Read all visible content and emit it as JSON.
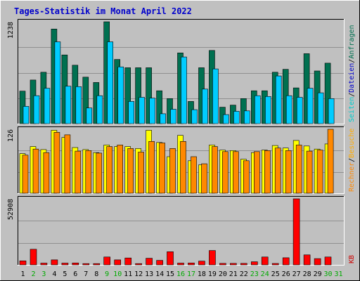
{
  "title": "Tages-Statistik im Monat April 2022",
  "colors": {
    "background": "#c0c0c0",
    "panel": "#c0c0c0",
    "grid": "#909090",
    "title": "#0000cc",
    "hits": "#007050",
    "hits_light": "#00a080",
    "files": "#00ccff",
    "files_dark": "#0077aa",
    "pages": "#00cccc",
    "visits": "#ffff00",
    "visits_dark": "#aaaa00",
    "sites": "#ff8800",
    "sites_dark": "#aa4400",
    "kbytes": "#ff0000",
    "kbytes_dark": "#880000",
    "weekend_day": "#00aa00",
    "weekday": "#000000"
  },
  "chart_data": {
    "type": "bar",
    "title": "Tages-Statistik im Monat April 2022",
    "x": [
      1,
      2,
      3,
      4,
      5,
      6,
      7,
      8,
      9,
      10,
      11,
      12,
      13,
      14,
      15,
      16,
      17,
      18,
      19,
      20,
      21,
      22,
      23,
      24,
      25,
      26,
      27,
      28,
      29,
      30,
      31
    ],
    "weekend_days": [
      2,
      3,
      9,
      10,
      16,
      17,
      23,
      24,
      30,
      31
    ],
    "panels": [
      {
        "name": "top",
        "ymax": 1238,
        "ytick_label": "1238",
        "right_labels": [
          {
            "text": "Anfragen",
            "color": "#007050"
          },
          {
            "text": "/",
            "color": "#000000"
          },
          {
            "text": "Dateien",
            "color": "#0000cc"
          },
          {
            "text": "/",
            "color": "#000000"
          },
          {
            "text": "Seiten",
            "color": "#00cccc"
          }
        ],
        "series": [
          {
            "name": "Anfragen",
            "values": [
              395,
              530,
              625,
              1150,
              835,
              710,
              565,
              500,
              1238,
              780,
              680,
              680,
              680,
              400,
              305,
              860,
              270,
              680,
              890,
              200,
              225,
              305,
              400,
              400,
              625,
              660,
              435,
              850,
              640,
              735,
              0
            ]
          },
          {
            "name": "Dateien",
            "values": [
              210,
              340,
              430,
              995,
              455,
              450,
              190,
              340,
              995,
              690,
              270,
              320,
              310,
              120,
              175,
              810,
              170,
              420,
              665,
              110,
              150,
              155,
              340,
              330,
              580,
              340,
              320,
              430,
              375,
              305,
              0
            ]
          },
          {
            "name": "Seiten",
            "values": [
              0,
              0,
              0,
              0,
              0,
              0,
              0,
              0,
              0,
              0,
              0,
              0,
              0,
              0,
              0,
              0,
              0,
              0,
              0,
              0,
              0,
              0,
              0,
              0,
              0,
              0,
              0,
              0,
              0,
              0,
              0
            ]
          }
        ]
      },
      {
        "name": "middle",
        "ymax": 126,
        "ytick_label": "126",
        "right_labels": [
          {
            "text": "Besuche",
            "color": "#ffaa00"
          },
          {
            "text": "/",
            "color": "#000000"
          },
          {
            "text": "Rechner",
            "color": "#ff8800"
          }
        ],
        "series": [
          {
            "name": "Besuche",
            "values": [
              78,
              92,
              86,
              124,
              110,
              90,
              86,
              80,
              95,
              92,
              92,
              88,
              124,
              100,
              72,
              114,
              64,
              56,
              95,
              85,
              84,
              67,
              80,
              85,
              94,
              89,
              104,
              93,
              87,
              97,
              0
            ]
          },
          {
            "name": "Rechner",
            "values": [
              75,
              87,
              80,
              120,
              115,
              83,
              84,
              79,
              92,
              95,
              88,
              81,
              102,
              99,
              88,
              102,
              72,
              58,
              92,
              82,
              82,
              64,
              82,
              84,
              89,
              84,
              95,
              83,
              85,
              126,
              0
            ]
          }
        ]
      },
      {
        "name": "bottom",
        "ymax": 52908,
        "ytick_label": "52908",
        "right_labels": [
          {
            "text": "KB",
            "color": "#cc0000"
          }
        ],
        "series": [
          {
            "name": "KB",
            "values": [
              3200,
              12500,
              1400,
              4000,
              1400,
              1500,
              1000,
              1000,
              6300,
              4000,
              5500,
              1000,
              5300,
              3600,
              10500,
              1400,
              1500,
              3000,
              11500,
              1200,
              1200,
              1200,
              2500,
              6300,
              1100,
              5700,
              52908,
              8000,
              5000,
              6300,
              0
            ]
          }
        ]
      }
    ]
  }
}
